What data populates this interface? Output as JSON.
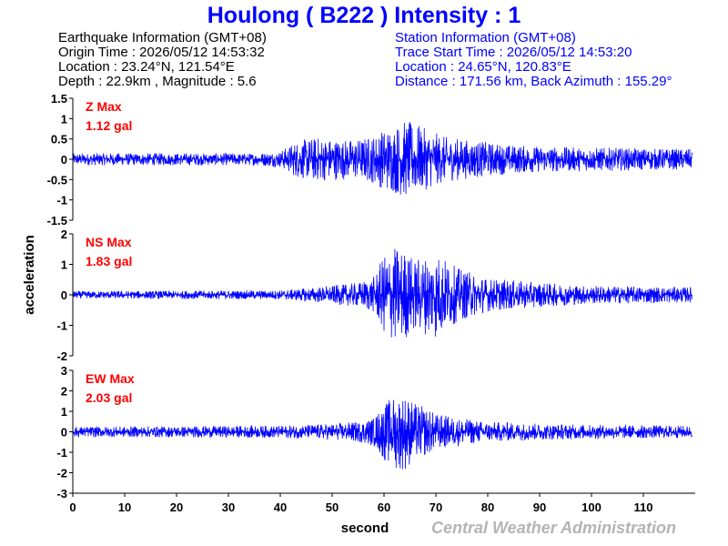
{
  "title": "Houlong ( B222 ) Intensity : 1",
  "earthquake_info": {
    "heading": "Earthquake Information  (GMT+08)",
    "origin_time": "Origin Time : 2026/05/12 14:53:32",
    "location": "Location : 23.24°N, 121.54°E",
    "depth_magnitude": "Depth : 22.9km , Magnitude : 5.6"
  },
  "station_info": {
    "heading": "Station Information  (GMT+08)",
    "trace_start": "Trace Start Time : 2026/05/12 14:53:20",
    "location": "Location : 24.65°N, 120.83°E",
    "distance": "Distance : 171.56 km, Back Azimuth : 155.29°"
  },
  "credit": "Central Weather Administration",
  "colors": {
    "title": "#0000ff",
    "trace": "#0000ff",
    "max_label": "#ff0000",
    "station_info": "#0000ff",
    "credit": "#b4b4b4"
  },
  "chart_data": {
    "type": "line",
    "xlabel": "second",
    "ylabel": "acceleration",
    "xlim": [
      0,
      120
    ],
    "x_ticks": [
      0,
      10,
      20,
      30,
      40,
      50,
      60,
      70,
      80,
      90,
      100,
      110
    ],
    "x_tick_labels": [
      "0",
      "10",
      "20",
      "30",
      "40",
      "50",
      "60",
      "70",
      "80",
      "90",
      "100",
      "110"
    ],
    "grid": false,
    "panels": [
      {
        "component": "Z",
        "max_label": "Z Max",
        "max_value": "1.12 gal",
        "ylim": [
          -1.5,
          1.5
        ],
        "y_ticks": [
          -1.5,
          -1,
          -0.5,
          0,
          0.5,
          1,
          1.5
        ],
        "y_tick_labels": [
          "-1.5",
          "-1",
          "-0.5",
          "0",
          "0.5",
          "1",
          "1.5"
        ],
        "envelope": {
          "t": [
            0,
            35,
            40,
            43,
            47,
            52,
            55,
            58,
            60,
            62,
            64,
            66,
            68,
            72,
            78,
            85,
            95,
            105,
            120
          ],
          "amp": [
            0.15,
            0.15,
            0.2,
            0.45,
            0.55,
            0.5,
            0.5,
            0.6,
            0.75,
            0.85,
            0.95,
            0.9,
            0.75,
            0.55,
            0.45,
            0.35,
            0.3,
            0.28,
            0.25
          ]
        }
      },
      {
        "component": "NS",
        "max_label": "NS Max",
        "max_value": "1.83 gal",
        "ylim": [
          -2,
          2
        ],
        "y_ticks": [
          -2,
          -1,
          0,
          1,
          2
        ],
        "y_tick_labels": [
          "-2",
          "-1",
          "0",
          "1",
          "2"
        ],
        "envelope": {
          "t": [
            0,
            40,
            50,
            55,
            58,
            60,
            62,
            64,
            66,
            68,
            70,
            74,
            80,
            90,
            100,
            120
          ],
          "amp": [
            0.12,
            0.15,
            0.3,
            0.4,
            0.6,
            1.3,
            1.6,
            1.5,
            1.2,
            1.3,
            1.45,
            0.9,
            0.55,
            0.4,
            0.3,
            0.25
          ]
        }
      },
      {
        "component": "EW",
        "max_label": "EW Max",
        "max_value": "2.03 gal",
        "ylim": [
          -3,
          3
        ],
        "y_ticks": [
          -3,
          -2,
          -1,
          0,
          1,
          2,
          3
        ],
        "y_tick_labels": [
          "-3",
          "-2",
          "-1",
          "0",
          "1",
          "2",
          "3"
        ],
        "envelope": {
          "t": [
            0,
            40,
            50,
            55,
            58,
            60,
            62,
            64,
            66,
            68,
            70,
            74,
            80,
            90,
            100,
            120
          ],
          "amp": [
            0.25,
            0.3,
            0.4,
            0.5,
            0.7,
            1.4,
            1.8,
            1.9,
            1.4,
            1.2,
            0.9,
            0.7,
            0.5,
            0.4,
            0.35,
            0.3
          ]
        }
      }
    ]
  }
}
